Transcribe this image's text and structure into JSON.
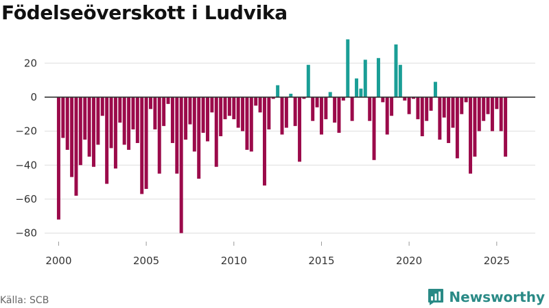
{
  "header": {
    "title": "Födelseöverskott i Ludvika"
  },
  "footer": {
    "source": "Källa: SCB",
    "brand": "Newsworthy"
  },
  "colors": {
    "negative": "#9b0a4a",
    "positive": "#1a9e96",
    "zero_line": "#333333",
    "grid": "#dddddd",
    "brand": "#2a8a86"
  },
  "chart_data": {
    "type": "bar",
    "title": "Födelseöverskott i Ludvika",
    "xlabel": "",
    "ylabel": "",
    "ylim": [
      -85,
      35
    ],
    "xlim": [
      1999.2,
      2027.2
    ],
    "yticks": [
      -80,
      -60,
      -40,
      -20,
      0,
      20
    ],
    "ytick_labels": [
      "−80",
      "−60",
      "−40",
      "−20",
      "0",
      "20"
    ],
    "xticks": [
      2000,
      2005,
      2010,
      2015,
      2020,
      2025
    ],
    "xtick_labels": [
      "2000",
      "2005",
      "2010",
      "2015",
      "2020",
      "2025"
    ],
    "frequency": "quarterly",
    "start": 2000.0,
    "step": 0.25,
    "values": [
      -72,
      -24,
      -31,
      -47,
      -58,
      -40,
      -25,
      -35,
      -41,
      -28,
      -11,
      -51,
      -30,
      -42,
      -15,
      -28,
      -31,
      -19,
      -27,
      -57,
      -54,
      -7,
      -19,
      -45,
      -17,
      -4,
      -27,
      -45,
      -80,
      -25,
      -16,
      -32,
      -48,
      -21,
      -26,
      -9,
      -41,
      -23,
      -13,
      -11,
      -13,
      -18,
      -20,
      -31,
      -32,
      -5,
      -9,
      -52,
      -19,
      -1,
      7,
      -22,
      -18,
      2,
      -17,
      -38,
      -1,
      19,
      -14,
      -6,
      -22,
      -13,
      3,
      -15,
      -21,
      -2,
      34,
      -14,
      11,
      5,
      22,
      -14,
      -37,
      23,
      -3,
      -22,
      -11,
      31,
      19,
      -2,
      -10,
      -1,
      -13,
      -23,
      -14,
      -8,
      9,
      -25,
      -12,
      -27,
      -18,
      -36,
      -10,
      -3,
      -45,
      -35,
      -20,
      -14,
      -10,
      -20,
      -7,
      -20,
      -35
    ]
  }
}
